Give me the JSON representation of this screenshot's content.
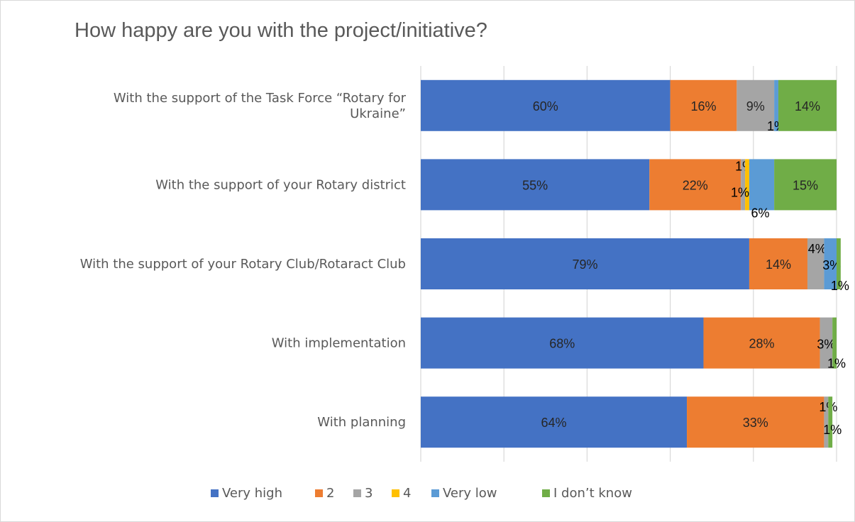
{
  "chart_data": {
    "type": "bar",
    "orientation": "horizontal",
    "stacked": true,
    "title": "How happy are you with the project/initiative?",
    "xlabel": "",
    "ylabel": "",
    "xlim": [
      0,
      100
    ],
    "grid": true,
    "legend_position": "bottom",
    "categories": [
      [
        "With the support of the Task Force “Rotary for",
        "Ukraine”"
      ],
      [
        "With the support of your Rotary district"
      ],
      [
        "With the support of your Rotary Club/Rotaract Club"
      ],
      [
        "With implementation"
      ],
      [
        "With planning"
      ]
    ],
    "series": [
      {
        "name": "Very high",
        "color": "#4472c4",
        "values": [
          60,
          55,
          79,
          68,
          64
        ]
      },
      {
        "name": "2",
        "color": "#ed7d31",
        "values": [
          16,
          22,
          14,
          28,
          33
        ]
      },
      {
        "name": "3",
        "color": "#a5a5a5",
        "values": [
          9,
          1,
          4,
          3,
          1
        ]
      },
      {
        "name": "4",
        "color": "#ffc000",
        "values": [
          0,
          1,
          0,
          0,
          0
        ]
      },
      {
        "name": "Very low",
        "color": "#5b9bd5",
        "values": [
          1,
          6,
          3,
          0,
          0
        ]
      },
      {
        "name": "I don’t know",
        "color": "#70ad47",
        "values": [
          14,
          15,
          1,
          1,
          1
        ]
      }
    ],
    "data_labels": [
      [
        "60%",
        "16%",
        "9%",
        "",
        "1%",
        "14%"
      ],
      [
        "55%",
        "22%",
        "1%",
        "1%",
        "6%",
        "15%"
      ],
      [
        "79%",
        "14%",
        "4%",
        "",
        "3%",
        "1%"
      ],
      [
        "68%",
        "28%",
        "3%",
        "",
        "",
        "1%"
      ],
      [
        "64%",
        "33%",
        "1%",
        "",
        "",
        "1%"
      ]
    ]
  }
}
